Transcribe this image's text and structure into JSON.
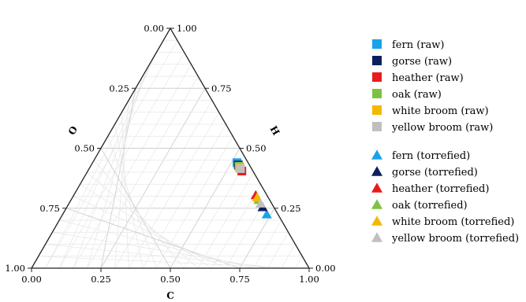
{
  "chart_data": {
    "type": "ternary-scatter",
    "axes": {
      "bottom": {
        "label": "C",
        "ticks": [
          "0.00",
          "0.25",
          "0.50",
          "0.75",
          "1.00"
        ]
      },
      "left": {
        "label": "O",
        "ticks": [
          "0.00",
          "0.25",
          "0.50",
          "0.75",
          "1.00"
        ]
      },
      "right": {
        "label": "H",
        "ticks": [
          "1.00",
          "0.75",
          "0.50",
          "0.25",
          "0.00"
        ]
      }
    },
    "grid": true,
    "grid_step": 0.05,
    "legend_position": "right",
    "series": [
      {
        "name": "fern (raw)",
        "marker": "square",
        "color": "#1aa3e8",
        "points": [
          {
            "C": 0.52,
            "O": 0.04,
            "H": 0.44
          }
        ]
      },
      {
        "name": "gorse (raw)",
        "marker": "square",
        "color": "#0d1f5c",
        "points": [
          {
            "C": 0.53,
            "O": 0.04,
            "H": 0.43
          }
        ]
      },
      {
        "name": "heather (raw)",
        "marker": "square",
        "color": "#e81c1c",
        "points": [
          {
            "C": 0.555,
            "O": 0.04,
            "H": 0.405
          }
        ]
      },
      {
        "name": "oak (raw)",
        "marker": "square",
        "color": "#7ec241",
        "points": [
          {
            "C": 0.535,
            "O": 0.04,
            "H": 0.425
          }
        ]
      },
      {
        "name": "white broom (raw)",
        "marker": "square",
        "color": "#f5b800",
        "points": [
          {
            "C": 0.54,
            "O": 0.04,
            "H": 0.42
          }
        ]
      },
      {
        "name": "yellow broom (raw)",
        "marker": "square",
        "color": "#c0c0c0",
        "points": [
          {
            "C": 0.545,
            "O": 0.04,
            "H": 0.415
          }
        ]
      },
      {
        "name": "fern (torrefied)",
        "marker": "triangle",
        "color": "#1aa3e8",
        "points": [
          {
            "C": 0.735,
            "O": 0.04,
            "H": 0.225
          }
        ]
      },
      {
        "name": "gorse (torrefied)",
        "marker": "triangle",
        "color": "#0d1f5c",
        "points": [
          {
            "C": 0.705,
            "O": 0.04,
            "H": 0.255
          }
        ]
      },
      {
        "name": "heather (torrefied)",
        "marker": "triangle",
        "color": "#e81c1c",
        "points": [
          {
            "C": 0.655,
            "O": 0.04,
            "H": 0.305
          }
        ]
      },
      {
        "name": "oak (torrefied)",
        "marker": "triangle",
        "color": "#7ec241",
        "points": [
          {
            "C": 0.675,
            "O": 0.04,
            "H": 0.285
          }
        ]
      },
      {
        "name": "white broom (torrefied)",
        "marker": "triangle",
        "color": "#f5b800",
        "points": [
          {
            "C": 0.665,
            "O": 0.04,
            "H": 0.295
          }
        ]
      },
      {
        "name": "yellow broom (torrefied)",
        "marker": "triangle",
        "color": "#c0c0c0",
        "points": [
          {
            "C": 0.69,
            "O": 0.04,
            "H": 0.27
          }
        ]
      }
    ]
  }
}
